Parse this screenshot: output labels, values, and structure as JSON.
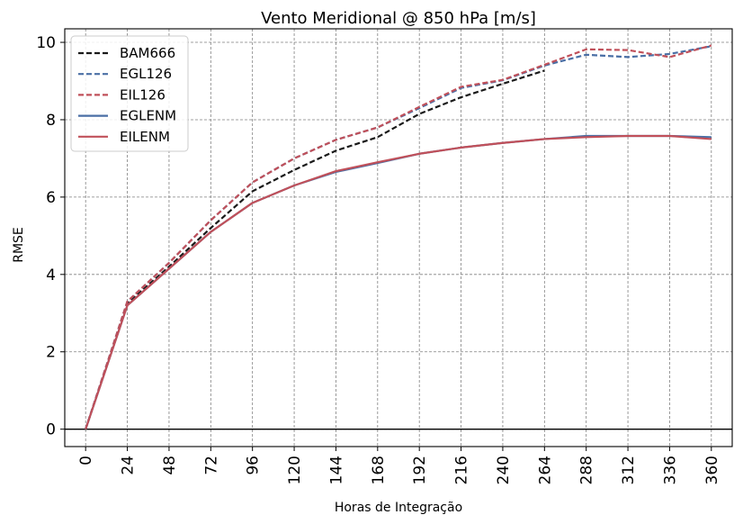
{
  "chart_data": {
    "type": "line",
    "title": "Vento Meridional @ 850 hPa [m/s]",
    "xlabel": "Horas de Integração",
    "ylabel": "RMSE",
    "xlim": [
      -12,
      372
    ],
    "ylim": [
      -0.45,
      10.35
    ],
    "x_ticks": [
      "0",
      "24",
      "48",
      "72",
      "96",
      "120",
      "144",
      "168",
      "192",
      "216",
      "240",
      "264",
      "288",
      "312",
      "336",
      "360"
    ],
    "y_ticks": [
      "0",
      "2",
      "4",
      "6",
      "8",
      "10"
    ],
    "grid": true,
    "legend_position": "top-left",
    "series": [
      {
        "name": "BAM666",
        "color": "#1a1a1a",
        "style": "dashed",
        "x": [
          0,
          24,
          48,
          72,
          96,
          120,
          144,
          168,
          192,
          216,
          240,
          264
        ],
        "values": [
          0,
          3.25,
          4.2,
          5.2,
          6.15,
          6.7,
          7.2,
          7.55,
          8.15,
          8.58,
          8.93,
          9.27
        ]
      },
      {
        "name": "EGL126",
        "color": "#4a6fa5",
        "style": "dashed",
        "x": [
          0,
          24,
          48,
          72,
          96,
          120,
          144,
          168,
          192,
          216,
          240,
          264,
          288,
          312,
          336,
          360
        ],
        "values": [
          0,
          3.3,
          4.3,
          5.4,
          6.38,
          7.0,
          7.48,
          7.8,
          8.3,
          8.82,
          9.02,
          9.4,
          9.68,
          9.62,
          9.7,
          9.9
        ]
      },
      {
        "name": "EIL126",
        "color": "#c0505a",
        "style": "dashed",
        "x": [
          0,
          24,
          48,
          72,
          96,
          120,
          144,
          168,
          192,
          216,
          240,
          264,
          288,
          312,
          336,
          360
        ],
        "values": [
          0,
          3.3,
          4.3,
          5.4,
          6.38,
          7.0,
          7.48,
          7.8,
          8.33,
          8.85,
          9.03,
          9.42,
          9.82,
          9.8,
          9.62,
          9.92
        ]
      },
      {
        "name": "EGLENM",
        "color": "#4a6fa5",
        "style": "solid",
        "x": [
          0,
          24,
          48,
          72,
          96,
          120,
          144,
          168,
          192,
          216,
          240,
          264,
          288,
          312,
          336,
          360
        ],
        "values": [
          0,
          3.2,
          4.15,
          5.1,
          5.85,
          6.3,
          6.65,
          6.88,
          7.12,
          7.28,
          7.4,
          7.5,
          7.58,
          7.58,
          7.58,
          7.55
        ]
      },
      {
        "name": "EILENM",
        "color": "#c0505a",
        "style": "solid",
        "x": [
          0,
          24,
          48,
          72,
          96,
          120,
          144,
          168,
          192,
          216,
          240,
          264,
          288,
          312,
          336,
          360
        ],
        "values": [
          0,
          3.2,
          4.15,
          5.1,
          5.85,
          6.3,
          6.67,
          6.9,
          7.12,
          7.28,
          7.4,
          7.5,
          7.55,
          7.58,
          7.58,
          7.5
        ]
      }
    ]
  }
}
